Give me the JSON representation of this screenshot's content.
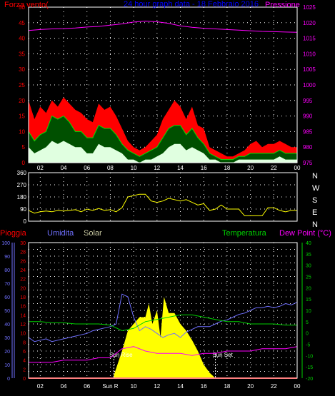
{
  "colors": {
    "background": "#000000",
    "frame": "#ffffff",
    "grid": "#ffffff",
    "wind_avg": "#00e000",
    "wind_gust": "#ff0000",
    "wind_min": "#e0ffe0",
    "pressure": "#ff00ff",
    "direction": "#ffff00",
    "rain": "#ff0000",
    "humidity": "#7070ff",
    "solar": "#ffff00",
    "temperature": "#00d000",
    "dew_point": "#ff00ff",
    "sun_line": "#ffffff",
    "title": "#0000ff",
    "label_white": "#ffffff"
  },
  "chart_data": [
    {
      "type": "line",
      "id": "wind",
      "title": "24 hour graph data - 18 Febbraio 2016",
      "ylabel_left": "Forza vento(",
      "ylabel_right": "Pressione",
      "x_range": [
        1,
        24
      ],
      "x_ticks": [
        "02",
        "04",
        "06",
        "08",
        "10",
        "12",
        "14",
        "16",
        "18",
        "20",
        "22",
        "00"
      ],
      "x_tick_hours": [
        2,
        4,
        6,
        8,
        10,
        12,
        14,
        16,
        18,
        20,
        22,
        24
      ],
      "ylim": [
        0,
        50
      ],
      "y_ticks": [
        "0",
        "5",
        "10",
        "15",
        "20",
        "25",
        "30",
        "35",
        "40",
        "45",
        "50"
      ],
      "y2lim": [
        975,
        1025
      ],
      "y2_ticks": [
        "975",
        "980",
        "985",
        "990",
        "995",
        "1000",
        "1005",
        "1010",
        "1015",
        "1020",
        "1025"
      ],
      "grid": true,
      "series": [
        {
          "key": "gust",
          "hours": [
            1,
            1.5,
            2,
            2.5,
            3,
            3.5,
            4,
            4.5,
            5,
            5.5,
            6,
            6.5,
            7,
            7.5,
            8,
            8.5,
            9,
            9.5,
            10,
            10.5,
            11,
            11.5,
            12,
            12.5,
            13,
            13.5,
            14,
            14.5,
            15,
            15.5,
            16,
            16.5,
            17,
            17.5,
            18,
            18.5,
            19,
            19.5,
            20,
            20.5,
            21,
            21.5,
            22,
            22.5,
            23,
            23.5,
            24
          ],
          "values": [
            20,
            14,
            18,
            16,
            20,
            18,
            21,
            19,
            17,
            16,
            14,
            13,
            19,
            17,
            18,
            15,
            11,
            7,
            5,
            4,
            5,
            7,
            9,
            14,
            17,
            20,
            18,
            14,
            18,
            12,
            11,
            5,
            4,
            3,
            2,
            2,
            3,
            4,
            6,
            7,
            5,
            6,
            6,
            7,
            6,
            5,
            5
          ]
        },
        {
          "key": "avg",
          "hours": [
            1,
            1.5,
            2,
            2.5,
            3,
            3.5,
            4,
            4.5,
            5,
            5.5,
            6,
            6.5,
            7,
            7.5,
            8,
            8.5,
            9,
            9.5,
            10,
            10.5,
            11,
            11.5,
            12,
            12.5,
            13,
            13.5,
            14,
            14.5,
            15,
            15.5,
            16,
            16.5,
            17,
            17.5,
            18,
            18.5,
            19,
            19.5,
            20,
            20.5,
            21,
            21.5,
            22,
            22.5,
            23,
            23.5,
            24
          ],
          "values": [
            10,
            7,
            9,
            10,
            15,
            14,
            15,
            13,
            10,
            10,
            8,
            8,
            12,
            11,
            11,
            9,
            6,
            4,
            3,
            2,
            3,
            4,
            5,
            8,
            11,
            12,
            12,
            9,
            11,
            8,
            6,
            3,
            2,
            1,
            1,
            1,
            2,
            2,
            3,
            3,
            3,
            3,
            3,
            4,
            3,
            3,
            3
          ]
        },
        {
          "key": "min",
          "hours": [
            1,
            1.5,
            2,
            2.5,
            3,
            3.5,
            4,
            4.5,
            5,
            5.5,
            6,
            6.5,
            7,
            7.5,
            8,
            8.5,
            9,
            9.5,
            10,
            10.5,
            11,
            11.5,
            12,
            12.5,
            13,
            13.5,
            14,
            14.5,
            15,
            15.5,
            16,
            16.5,
            17,
            17.5,
            18,
            18.5,
            19,
            19.5,
            20,
            20.5,
            21,
            21.5,
            22,
            22.5,
            23,
            23.5,
            24
          ],
          "values": [
            5,
            3,
            4,
            5,
            7,
            6,
            7,
            6,
            5,
            5,
            3,
            3,
            6,
            5,
            5,
            4,
            3,
            1,
            1,
            0,
            1,
            1,
            2,
            3,
            5,
            6,
            6,
            4,
            5,
            4,
            3,
            1,
            1,
            0,
            0,
            0,
            1,
            1,
            1,
            1,
            1,
            1,
            1,
            2,
            1,
            1,
            1
          ]
        },
        {
          "key": "pressure",
          "axis": "right",
          "hours": [
            1,
            2,
            3,
            4,
            5,
            6,
            7,
            8,
            9,
            10,
            11,
            12,
            13,
            14,
            15,
            16,
            17,
            18,
            19,
            20,
            21,
            22,
            23,
            24
          ],
          "values": [
            1017.5,
            1017.8,
            1018,
            1018.1,
            1018.3,
            1018.6,
            1018.8,
            1019.2,
            1019.6,
            1020.2,
            1020.5,
            1020.3,
            1019.8,
            1019,
            1018.5,
            1018.2,
            1018,
            1017.8,
            1017.6,
            1017.4,
            1017.2,
            1017.1,
            1017,
            1016.9
          ]
        }
      ]
    },
    {
      "type": "line",
      "id": "direction",
      "x_range": [
        1,
        24
      ],
      "x_tick_hours": [
        2,
        4,
        6,
        8,
        10,
        12,
        14,
        16,
        18,
        20,
        22,
        24
      ],
      "ylim": [
        0,
        360
      ],
      "y_ticks": [
        "0",
        "90",
        "180",
        "270",
        "360"
      ],
      "compass_labels": [
        "N",
        "W",
        "S",
        "E",
        "N"
      ],
      "grid": true,
      "series": [
        {
          "key": "direction",
          "hours": [
            1,
            1.5,
            2,
            2.5,
            3,
            3.5,
            4,
            4.5,
            5,
            5.5,
            6,
            6.5,
            7,
            7.5,
            8,
            8.5,
            9,
            9.5,
            10,
            10.5,
            11,
            11.5,
            12,
            12.5,
            13,
            13.5,
            14,
            14.5,
            15,
            15.5,
            16,
            16.5,
            17,
            17.5,
            18,
            18.5,
            19,
            19.5,
            20,
            20.5,
            21,
            21.5,
            22,
            22.5,
            23,
            23.5,
            24
          ],
          "values": [
            80,
            60,
            70,
            75,
            70,
            80,
            75,
            80,
            85,
            70,
            90,
            80,
            95,
            80,
            85,
            70,
            100,
            180,
            190,
            200,
            200,
            150,
            140,
            150,
            170,
            160,
            150,
            160,
            140,
            120,
            130,
            80,
            90,
            120,
            90,
            90,
            90,
            40,
            40,
            40,
            40,
            100,
            100,
            80,
            70,
            80,
            80
          ]
        }
      ]
    },
    {
      "type": "line",
      "id": "weather",
      "labels": {
        "rain": "Pioggia",
        "humidity": "Umidita",
        "solar": "Solar",
        "temperature": "Temperatura",
        "dew_point": "Dew Point (°C)"
      },
      "x_range": [
        1,
        24
      ],
      "x_ticks": [
        "02",
        "04",
        "06",
        "Sun R",
        "10",
        "12",
        "14",
        "16",
        "18",
        "20",
        "22",
        "00"
      ],
      "x_tick_hours": [
        2,
        4,
        6,
        8,
        10,
        12,
        14,
        16,
        18,
        20,
        22,
        24
      ],
      "axis_humidity": {
        "lim": [
          0,
          100
        ],
        "ticks": [
          "0",
          "10",
          "20",
          "30",
          "40",
          "50",
          "60",
          "70",
          "80",
          "90",
          "100"
        ]
      },
      "axis_rain": {
        "lim": [
          0,
          30
        ],
        "ticks": [
          "0",
          "2",
          "4",
          "6",
          "8",
          "10",
          "12",
          "14",
          "16",
          "18",
          "20",
          "22",
          "24",
          "26",
          "28",
          "30"
        ]
      },
      "axis_temp": {
        "lim": [
          -20,
          40
        ],
        "ticks": [
          "-20",
          "-15",
          "-10",
          "-5",
          "0",
          "5",
          "10",
          "15",
          "20",
          "25",
          "30",
          "35",
          "40"
        ]
      },
      "sun_rise": {
        "hour": 8.3,
        "label": "Sun Rise"
      },
      "sun_set": {
        "hour": 17.0,
        "label": "Sun Set"
      },
      "grid": true,
      "series": [
        {
          "key": "humidity",
          "axis": "humidity",
          "hours": [
            1,
            1.5,
            2,
            2.5,
            3,
            3.5,
            4,
            4.5,
            5,
            5.5,
            6,
            6.5,
            7,
            7.5,
            8,
            8.5,
            9,
            9.5,
            10,
            10.5,
            11,
            11.5,
            12,
            12.5,
            13,
            13.5,
            14,
            14.5,
            15,
            15.5,
            16,
            16.5,
            17,
            17.5,
            18,
            18.5,
            19,
            19.5,
            20,
            20.5,
            21,
            21.5,
            22,
            22.5,
            23,
            23.5,
            24
          ],
          "values": [
            30,
            27,
            28,
            29,
            27,
            28,
            29,
            30,
            31,
            32,
            33,
            35,
            36,
            37,
            38,
            40,
            62,
            60,
            45,
            35,
            38,
            36,
            33,
            30,
            32,
            33,
            30,
            34,
            36,
            38,
            38,
            38,
            40,
            42,
            43,
            45,
            47,
            48,
            50,
            52,
            52,
            53,
            52,
            53,
            55,
            54,
            56
          ]
        },
        {
          "key": "temperature",
          "axis": "temp",
          "hours": [
            1,
            2,
            3,
            4,
            5,
            6,
            7,
            8,
            9,
            10,
            11,
            12,
            13,
            14,
            15,
            16,
            17,
            18,
            19,
            20,
            21,
            22,
            23,
            24
          ],
          "values": [
            5,
            5,
            4.5,
            4.5,
            4,
            4,
            4,
            3.5,
            1,
            2,
            5,
            6,
            7,
            8,
            8,
            7,
            6,
            5,
            5,
            4,
            4,
            4,
            3.5,
            3.5
          ]
        },
        {
          "key": "dew_point",
          "axis": "temp",
          "hours": [
            1,
            2,
            3,
            4,
            5,
            6,
            7,
            8,
            9,
            10,
            11,
            12,
            13,
            14,
            15,
            16,
            17,
            18,
            19,
            20,
            21,
            22,
            23,
            24
          ],
          "values": [
            -13,
            -13,
            -13,
            -12,
            -12,
            -12,
            -11,
            -11,
            -7,
            -6,
            -8,
            -9,
            -9,
            -9,
            -10,
            -9,
            -9,
            -8,
            -8,
            -8,
            -7,
            -7,
            -7,
            -6
          ]
        },
        {
          "key": "solar",
          "axis": "solar_relative",
          "hours": [
            8.3,
            9,
            9.5,
            10,
            10.5,
            11,
            11.3,
            11.6,
            12,
            12.3,
            12.6,
            13,
            13.5,
            14,
            14.5,
            15,
            15.5,
            16,
            16.5,
            17
          ],
          "values": [
            0.02,
            0.2,
            0.35,
            0.4,
            0.45,
            0.45,
            0.55,
            0.4,
            0.5,
            0.3,
            0.6,
            0.48,
            0.48,
            0.4,
            0.35,
            0.28,
            0.2,
            0.1,
            0.04,
            0.0
          ]
        },
        {
          "key": "rain",
          "axis": "rain",
          "hours": [
            1,
            24
          ],
          "values": [
            0,
            0
          ]
        }
      ]
    }
  ]
}
